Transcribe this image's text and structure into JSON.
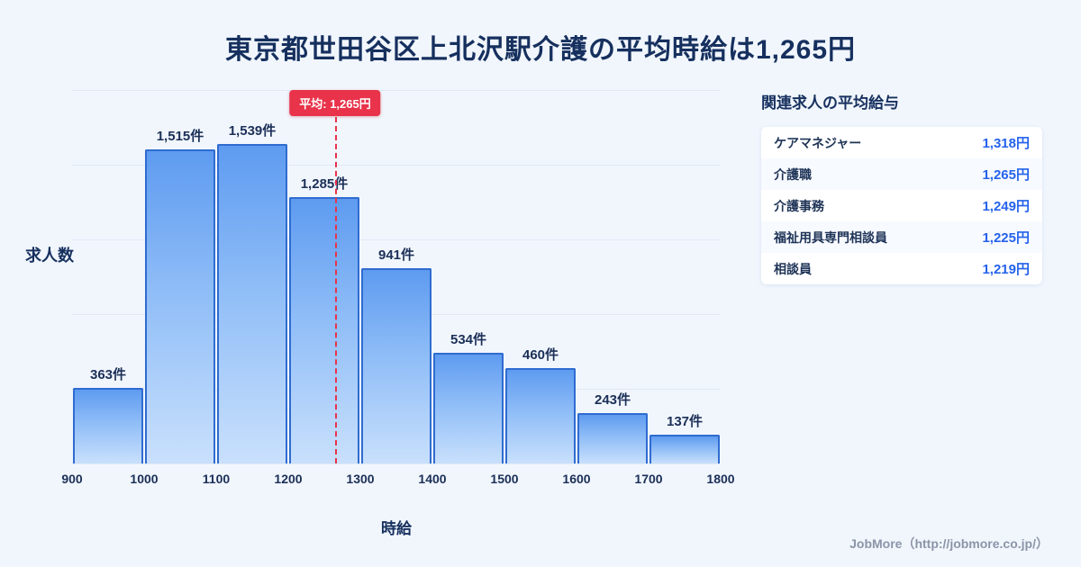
{
  "title": "東京都世田谷区上北沢駅介護の平均時給は1,265円",
  "chart_data": {
    "type": "bar",
    "title": "東京都世田谷区上北沢駅介護の平均時給は1,265円",
    "xlabel": "時給",
    "ylabel": "求人数",
    "x_range": [
      900,
      1800
    ],
    "ylim": [
      0,
      1800
    ],
    "bin_width": 100,
    "grid": true,
    "categories": [
      "900-1000",
      "1000-1100",
      "1100-1200",
      "1200-1300",
      "1300-1400",
      "1400-1500",
      "1500-1600",
      "1600-1700",
      "1700-1800"
    ],
    "values": [
      363,
      1515,
      1539,
      1285,
      941,
      534,
      460,
      243,
      137
    ],
    "bar_labels": [
      "363件",
      "1,515件",
      "1,539件",
      "1,285件",
      "941件",
      "534件",
      "460件",
      "243件",
      "137件"
    ],
    "xticks": [
      "900",
      "1000",
      "1100",
      "1200",
      "1300",
      "1400",
      "1500",
      "1600",
      "1700",
      "1800"
    ],
    "average": 1265,
    "average_label": "平均: 1,265円"
  },
  "panel": {
    "heading": "関連求人の平均給与",
    "rows": [
      {
        "label": "ケアマネジャー",
        "value": "1,318円"
      },
      {
        "label": "介護職",
        "value": "1,265円"
      },
      {
        "label": "介護事務",
        "value": "1,249円"
      },
      {
        "label": "福祉用具専門相談員",
        "value": "1,225円"
      },
      {
        "label": "相談員",
        "value": "1,219円"
      }
    ]
  },
  "footer": {
    "credit": "JobMore（http://jobmore.co.jp/）"
  },
  "colors": {
    "background": "#f1f6fd",
    "title": "#16305e",
    "bar_border": "#2f6cd0",
    "bar_gradient_top": "#5e9bf0",
    "bar_gradient_bottom": "#c9e0fc",
    "average_line": "#e8334a",
    "value_accent": "#2563eb",
    "footer_text": "#8b95a7"
  }
}
